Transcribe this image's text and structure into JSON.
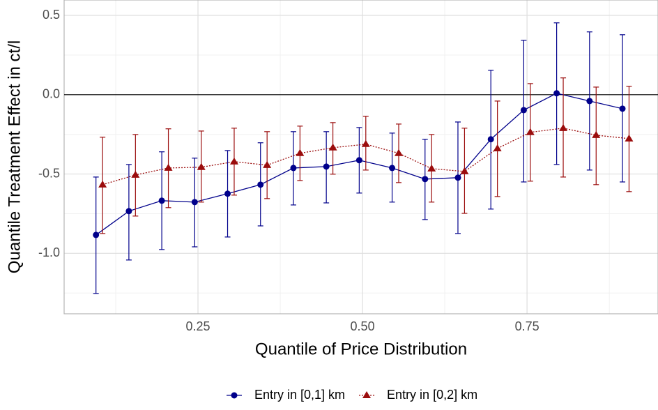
{
  "chart_data": {
    "type": "errorbar-line",
    "xlabel": "Quantile of Price Distribution",
    "ylabel": "Quantile Treatment Effect in ct/l",
    "xlim": [
      0.0466,
      0.949
    ],
    "ylim": [
      -1.381,
      0.597
    ],
    "xticks": [
      0.25,
      0.5,
      0.75
    ],
    "yticks": [
      0.5,
      0.0,
      -0.5,
      -1.0
    ],
    "xticklabels": [
      "0.25",
      "0.50",
      "0.75"
    ],
    "yticklabels": [
      "0.5",
      "0.0",
      "-0.5",
      "-1.0"
    ],
    "xminor": [
      0.125,
      0.375,
      0.625,
      0.875
    ],
    "yminor": [
      0.25,
      -0.25,
      -0.75,
      -1.25
    ],
    "hline": 0,
    "grid": true,
    "legend": "bottom",
    "series": [
      {
        "name": "Entry in [0,1] km",
        "color": "#00008b",
        "marker": "circle",
        "linestyle": "solid",
        "x": [
          0.095,
          0.145,
          0.195,
          0.245,
          0.295,
          0.345,
          0.395,
          0.445,
          0.495,
          0.545,
          0.595,
          0.645,
          0.695,
          0.745,
          0.795,
          0.845,
          0.895
        ],
        "values": [
          -0.884,
          -0.734,
          -0.668,
          -0.677,
          -0.624,
          -0.567,
          -0.462,
          -0.453,
          -0.413,
          -0.462,
          -0.532,
          -0.523,
          -0.281,
          -0.097,
          0.009,
          -0.04,
          -0.088
        ],
        "lower": [
          -1.253,
          -1.042,
          -0.976,
          -0.959,
          -0.897,
          -0.827,
          -0.695,
          -0.682,
          -0.62,
          -0.677,
          -0.787,
          -0.875,
          -0.721,
          -0.55,
          -0.44,
          -0.475,
          -0.55
        ],
        "upper": [
          -0.519,
          -0.44,
          -0.36,
          -0.4,
          -0.352,
          -0.303,
          -0.233,
          -0.233,
          -0.207,
          -0.242,
          -0.281,
          -0.172,
          0.154,
          0.343,
          0.453,
          0.396,
          0.378
        ]
      },
      {
        "name": "Entry in [0,2] km",
        "color": "#9b0d0d",
        "marker": "triangle",
        "linestyle": "dotted",
        "x": [
          0.105,
          0.155,
          0.205,
          0.255,
          0.305,
          0.355,
          0.405,
          0.455,
          0.505,
          0.555,
          0.605,
          0.655,
          0.705,
          0.755,
          0.805,
          0.855,
          0.905
        ],
        "values": [
          -0.567,
          -0.506,
          -0.462,
          -0.457,
          -0.422,
          -0.444,
          -0.369,
          -0.334,
          -0.312,
          -0.369,
          -0.466,
          -0.484,
          -0.339,
          -0.237,
          -0.211,
          -0.255,
          -0.277
        ],
        "lower": [
          -0.875,
          -0.765,
          -0.712,
          -0.677,
          -0.633,
          -0.655,
          -0.541,
          -0.501,
          -0.475,
          -0.554,
          -0.677,
          -0.748,
          -0.642,
          -0.545,
          -0.519,
          -0.567,
          -0.611
        ],
        "upper": [
          -0.268,
          -0.251,
          -0.215,
          -0.229,
          -0.211,
          -0.233,
          -0.198,
          -0.176,
          -0.136,
          -0.185,
          -0.251,
          -0.211,
          -0.04,
          0.07,
          0.106,
          0.048,
          0.053
        ]
      }
    ]
  }
}
